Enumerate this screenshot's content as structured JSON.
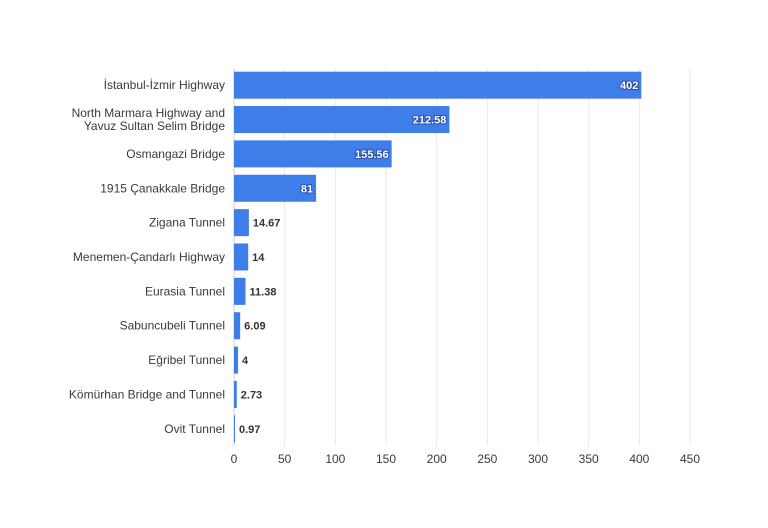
{
  "chart_data": {
    "type": "bar",
    "orientation": "horizontal",
    "categories": [
      "İstanbul-İzmir Highway",
      "North Marmara Highway and Yavuz Sultan Selim Bridge",
      "Osmangazi Bridge",
      "1915 Çanakkale Bridge",
      "Zigana Tunnel",
      "Menemen-Çandarlı Highway",
      "Eurasia Tunnel",
      "Sabuncubeli Tunnel",
      "Eğribel Tunnel",
      "Kömürhan Bridge and Tunnel",
      "Ovit Tunnel"
    ],
    "category_lines": [
      [
        "İstanbul-İzmir Highway"
      ],
      [
        "North Marmara Highway and",
        "Yavuz Sultan Selim Bridge"
      ],
      [
        "Osmangazi Bridge"
      ],
      [
        "1915 Çanakkale Bridge"
      ],
      [
        "Zigana Tunnel"
      ],
      [
        "Menemen-Çandarlı Highway"
      ],
      [
        "Eurasia Tunnel"
      ],
      [
        "Sabuncubeli Tunnel"
      ],
      [
        "Eğribel Tunnel"
      ],
      [
        "Kömürhan Bridge and Tunnel"
      ],
      [
        "Ovit Tunnel"
      ]
    ],
    "values": [
      402,
      212.58,
      155.56,
      81,
      14.67,
      14,
      11.38,
      6.09,
      4,
      2.73,
      0.97
    ],
    "value_labels": [
      "402",
      "212.58",
      "155.56",
      "81",
      "14.67",
      "14",
      "11.38",
      "6.09",
      "4",
      "2.73",
      "0.97"
    ],
    "xlim": [
      0,
      450
    ],
    "x_ticks": [
      0,
      50,
      100,
      150,
      200,
      250,
      300,
      350,
      400,
      450
    ],
    "grid": true,
    "bar_color": "#3f7de8",
    "title": "",
    "xlabel": "",
    "ylabel": ""
  }
}
